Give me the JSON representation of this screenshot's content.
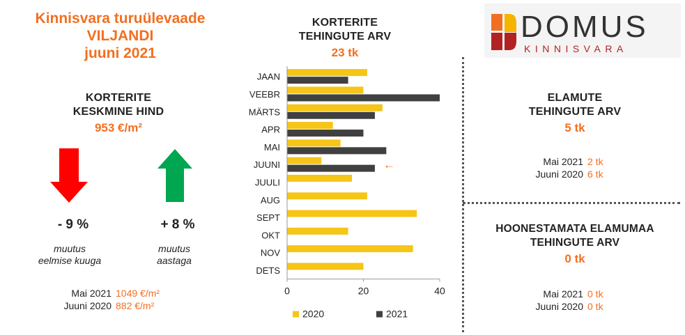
{
  "header": {
    "line1": "Kinnisvara turuülevaade",
    "line2": "VILJANDI",
    "line3": "juuni 2021"
  },
  "price": {
    "title_line1": "KORTERITE",
    "title_line2": "KESKMINE HIND",
    "value": "953 €/m²",
    "down_change": "- 9 %",
    "down_caption_line1": "muutus",
    "down_caption_line2": "eelmise kuuga",
    "up_change": "+ 8 %",
    "up_caption_line1": "muutus",
    "up_caption_line2": "aastaga",
    "cmp1_label": "Mai 2021",
    "cmp1_value": "1049 €/m²",
    "cmp2_label": "Juuni 2020",
    "cmp2_value": "882 €/m²",
    "down_color": "#ff0000",
    "up_color": "#00a650"
  },
  "logo": {
    "name": "DOMUS",
    "sub": "KINNISVARA",
    "colors": [
      "#f26f21",
      "#b22222",
      "#f5b400"
    ]
  },
  "houses": {
    "title_line1": "ELAMUTE",
    "title_line2": "TEHINGUTE ARV",
    "value": "5 tk",
    "cmp1_label": "Mai 2021",
    "cmp1_value": "2 tk",
    "cmp2_label": "Juuni 2020",
    "cmp2_value": "6 tk"
  },
  "land": {
    "title_line1": "HOONESTAMATA ELAMUMAA",
    "title_line2": "TEHINGUTE ARV",
    "value": "0 tk",
    "cmp1_label": "Mai 2021",
    "cmp1_value": "0 tk",
    "cmp2_label": "Juuni 2020",
    "cmp2_value": "0 tk"
  },
  "chart_data": {
    "type": "bar",
    "orientation": "horizontal",
    "title_line1": "KORTERITE",
    "title_line2": "TEHINGUTE ARV",
    "subtitle": "23 tk",
    "categories": [
      "JAAN",
      "VEEBR",
      "MÄRTS",
      "APR",
      "MAI",
      "JUUNI",
      "JUULI",
      "AUG",
      "SEPT",
      "OKT",
      "NOV",
      "DETS"
    ],
    "series": [
      {
        "name": "2020",
        "color": "#f5c518",
        "values": [
          21,
          20,
          25,
          12,
          14,
          9,
          17,
          21,
          34,
          16,
          33,
          20
        ]
      },
      {
        "name": "2021",
        "color": "#404040",
        "values": [
          16,
          40,
          23,
          20,
          26,
          23,
          null,
          null,
          null,
          null,
          null,
          null
        ]
      }
    ],
    "xlim": [
      0,
      40
    ],
    "xticks": [
      0,
      20,
      40
    ],
    "grid": false,
    "legend": "bottom",
    "annotation": {
      "text": "←",
      "category": "JUUNI",
      "color": "#f26f21"
    }
  }
}
